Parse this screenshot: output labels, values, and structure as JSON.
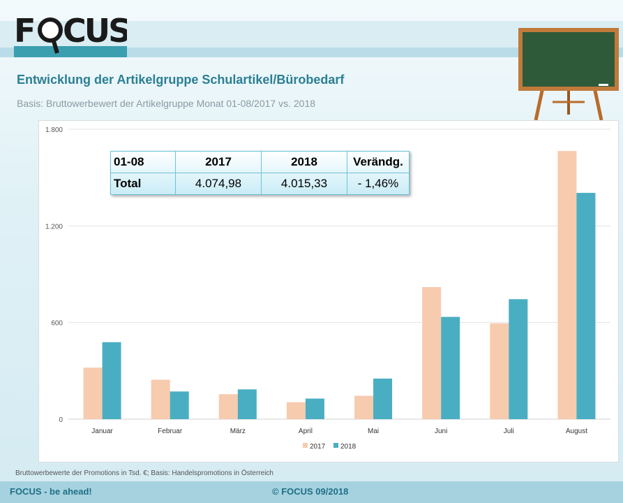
{
  "logo": {
    "text": "FOCUS",
    "icon": "magnifier-logo"
  },
  "header": {
    "title": "Entwicklung der Artikelgruppe Schulartikel/Bürobedarf",
    "subtitle": "Basis: Bruttowerbewert  der Artikelgruppe Monat 01-08/2017 vs. 2018"
  },
  "summary_table": {
    "header": [
      "01-08",
      "2017",
      "2018",
      "Verändg."
    ],
    "rows": [
      [
        "Total",
        "4.074,98",
        "4.015,33",
        "- 1,46%"
      ]
    ]
  },
  "chart_data": {
    "type": "bar",
    "categories": [
      "Januar",
      "Februar",
      "März",
      "April",
      "Mai",
      "Juni",
      "Juli",
      "August"
    ],
    "series": [
      {
        "name": "2017",
        "color": "#f7cbae",
        "values": [
          320,
          245,
          155,
          105,
          145,
          820,
          595,
          1665
        ]
      },
      {
        "name": "2018",
        "color": "#4aaec3",
        "values": [
          478,
          172,
          185,
          128,
          252,
          635,
          745,
          1405
        ]
      }
    ],
    "ylim": [
      0,
      1800
    ],
    "yticks": [
      0,
      600,
      1200,
      1800
    ],
    "ytick_labels": [
      "0",
      "600",
      "1.200",
      "1.800"
    ],
    "grid": true,
    "legend": "bottom-center"
  },
  "footnote": "Bruttowerbewerte der Promotions in Tsd. €; Basis: Handelspromotions in Österreich",
  "footer": {
    "left": "FOCUS  - be ahead!",
    "center": "© FOCUS  09/2018"
  },
  "decoration": {
    "icon": "chalkboard-easel-icon"
  }
}
